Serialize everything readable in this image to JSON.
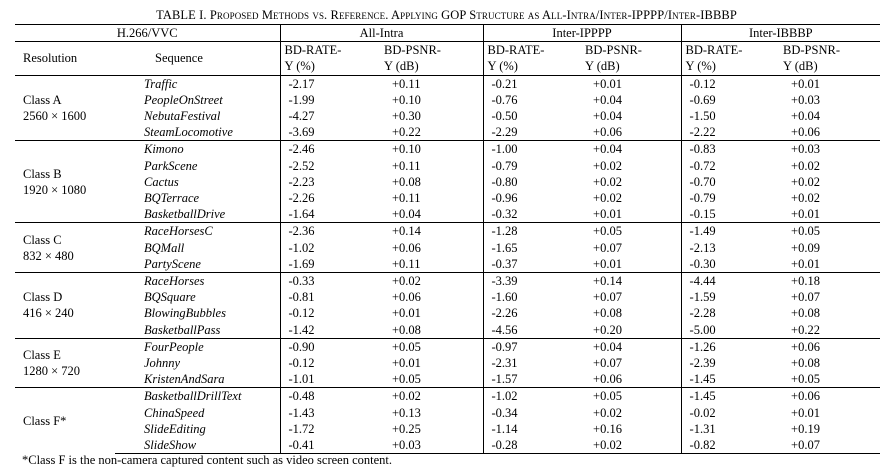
{
  "caption": {
    "table_label": "TABLE I. ",
    "title": "Proposed Methods vs. Reference. Applying GOP Structure as All-Intra/Inter-IPPPP/Inter-IBBBP"
  },
  "header": {
    "codec": "H.266/VVC",
    "groups": [
      "All-Intra",
      "Inter-IPPPP",
      "Inter-IBBBP"
    ],
    "resolution_label": "Resolution",
    "sequence_label": "Sequence",
    "metric_line1": [
      "BD-RATE-",
      "BD-PSNR-",
      "BD-RATE-",
      "BD-PSNR-",
      "BD-RATE-",
      "BD-PSNR-"
    ],
    "metric_line2": [
      "Y (%)",
      "Y (dB)",
      "Y (%)",
      "Y (dB)",
      "Y (%)",
      "Y (dB)"
    ]
  },
  "classes": [
    {
      "name": "Class A",
      "resolution": "2560 × 1600",
      "rows": [
        {
          "seq": "Traffic",
          "v": [
            "-2.17",
            "+0.11",
            "-0.21",
            "+0.01",
            "-0.12",
            "+0.01"
          ]
        },
        {
          "seq": "PeopleOnStreet",
          "v": [
            "-1.99",
            "+0.10",
            "-0.76",
            "+0.04",
            "-0.69",
            "+0.03"
          ]
        },
        {
          "seq": "NebutaFestival",
          "v": [
            "-4.27",
            "+0.30",
            "-0.50",
            "+0.04",
            "-1.50",
            "+0.04"
          ]
        },
        {
          "seq": "SteamLocomotive",
          "v": [
            "-3.69",
            "+0.22",
            "-2.29",
            "+0.06",
            "-2.22",
            "+0.06"
          ]
        }
      ]
    },
    {
      "name": "Class B",
      "resolution": "1920 × 1080",
      "rows": [
        {
          "seq": "Kimono",
          "v": [
            "-2.46",
            "+0.10",
            "-1.00",
            "+0.04",
            "-0.83",
            "+0.03"
          ]
        },
        {
          "seq": "ParkScene",
          "v": [
            "-2.52",
            "+0.11",
            "-0.79",
            "+0.02",
            "-0.72",
            "+0.02"
          ]
        },
        {
          "seq": "Cactus",
          "v": [
            "-2.23",
            "+0.08",
            "-0.80",
            "+0.02",
            "-0.70",
            "+0.02"
          ]
        },
        {
          "seq": "BQTerrace",
          "v": [
            "-2.26",
            "+0.11",
            "-0.96",
            "+0.02",
            "-0.79",
            "+0.02"
          ]
        },
        {
          "seq": "BasketballDrive",
          "v": [
            "-1.64",
            "+0.04",
            "-0.32",
            "+0.01",
            "-0.15",
            "+0.01"
          ]
        }
      ]
    },
    {
      "name": "Class C",
      "resolution": "832 × 480",
      "rows": [
        {
          "seq": "RaceHorsesC",
          "v": [
            "-2.36",
            "+0.14",
            "-1.28",
            "+0.05",
            "-1.49",
            "+0.05"
          ]
        },
        {
          "seq": "BQMall",
          "v": [
            "-1.02",
            "+0.06",
            "-1.65",
            "+0.07",
            "-2.13",
            "+0.09"
          ]
        },
        {
          "seq": "PartyScene",
          "v": [
            "-1.69",
            "+0.11",
            "-0.37",
            "+0.01",
            "-0.30",
            "+0.01"
          ]
        }
      ]
    },
    {
      "name": "Class D",
      "resolution": "416 × 240",
      "rows": [
        {
          "seq": "RaceHorses",
          "v": [
            "-0.33",
            "+0.02",
            "-3.39",
            "+0.14",
            "-4.44",
            "+0.18"
          ]
        },
        {
          "seq": "BQSquare",
          "v": [
            "-0.81",
            "+0.06",
            "-1.60",
            "+0.07",
            "-1.59",
            "+0.07"
          ]
        },
        {
          "seq": "BlowingBubbles",
          "v": [
            "-0.12",
            "+0.01",
            "-2.26",
            "+0.08",
            "-2.28",
            "+0.08"
          ]
        },
        {
          "seq": "BasketballPass",
          "v": [
            "-1.42",
            "+0.08",
            "-4.56",
            "+0.20",
            "-5.00",
            "+0.22"
          ]
        }
      ]
    },
    {
      "name": "Class E",
      "resolution": "1280 × 720",
      "rows": [
        {
          "seq": "FourPeople",
          "v": [
            "-0.90",
            "+0.05",
            "-0.97",
            "+0.04",
            "-1.26",
            "+0.06"
          ]
        },
        {
          "seq": "Johnny",
          "v": [
            "-0.12",
            "+0.01",
            "-2.31",
            "+0.07",
            "-2.39",
            "+0.08"
          ]
        },
        {
          "seq": "KristenAndSara",
          "v": [
            "-1.01",
            "+0.05",
            "-1.57",
            "+0.06",
            "-1.45",
            "+0.05"
          ]
        }
      ]
    },
    {
      "name": "Class F*",
      "resolution": "",
      "rows": [
        {
          "seq": "BasketballDrillText",
          "v": [
            "-0.48",
            "+0.02",
            "-1.02",
            "+0.05",
            "-1.45",
            "+0.06"
          ]
        },
        {
          "seq": "ChinaSpeed",
          "v": [
            "-1.43",
            "+0.13",
            "-0.34",
            "+0.02",
            "-0.02",
            "+0.01"
          ]
        },
        {
          "seq": "SlideEditing",
          "v": [
            "-1.72",
            "+0.25",
            "-1.14",
            "+0.16",
            "-1.31",
            "+0.19"
          ]
        },
        {
          "seq": "SlideShow",
          "v": [
            "-0.41",
            "+0.03",
            "-0.28",
            "+0.02",
            "-0.82",
            "+0.07"
          ]
        }
      ]
    }
  ],
  "footnote": "*Class F is the non-camera captured content such as video screen content."
}
